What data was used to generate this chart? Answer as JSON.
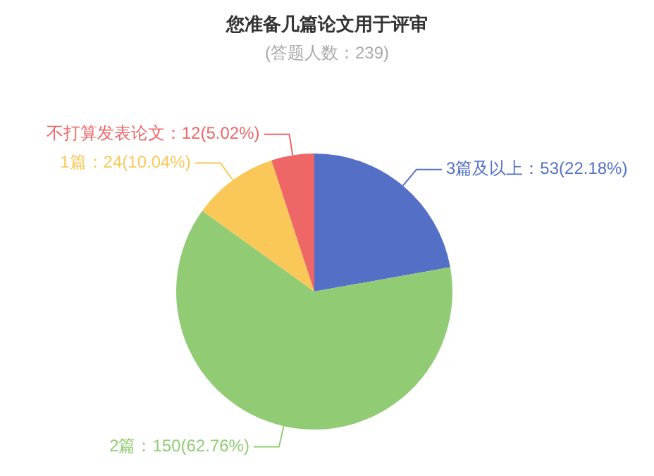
{
  "chart_data": {
    "type": "pie",
    "title": "您准备几篇论文用于评审",
    "subtitle": "(答题人数：239)",
    "categories": [
      "3篇及以上",
      "2篇",
      "1篇",
      "不打算发表论文"
    ],
    "values": [
      53,
      150,
      24,
      12
    ],
    "colors": [
      "#5470c6",
      "#91cc75",
      "#fac858",
      "#ee6666"
    ],
    "value_labels": [
      "53(22.18%)",
      "150(62.76%)",
      "24(10.04%)",
      "12(5.02%)"
    ],
    "legend": false
  }
}
